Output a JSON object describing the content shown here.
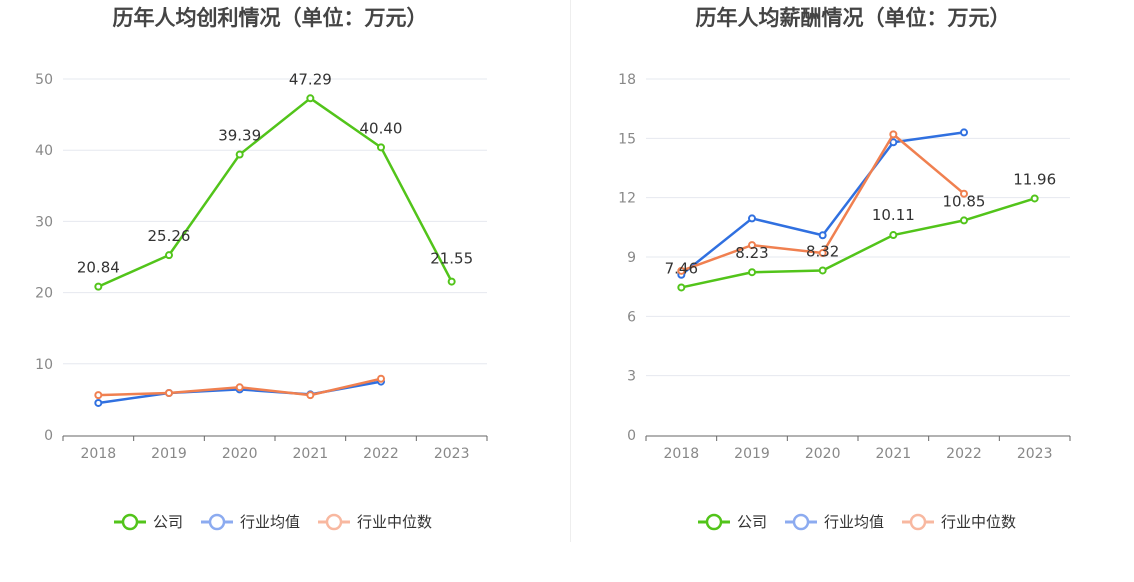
{
  "colors": {
    "company": "#52c41a",
    "industry_avg": "#3070e0",
    "industry_median": "#f08050",
    "legend_avg": "#8cabf0",
    "legend_median": "#f8b8a0"
  },
  "chart_data": [
    {
      "type": "line",
      "title": "历年人均创利情况（单位：万元）",
      "categories": [
        "2018",
        "2019",
        "2020",
        "2021",
        "2022",
        "2023"
      ],
      "ylim": [
        0,
        50
      ],
      "yticks": [
        "0",
        "10",
        "20",
        "30",
        "40",
        "50"
      ],
      "grid": true,
      "legend_position": "bottom",
      "series": [
        {
          "name": "公司",
          "key": "company",
          "values": [
            20.84,
            25.26,
            39.39,
            47.29,
            40.4,
            21.55
          ],
          "labels": [
            "20.84",
            "25.26",
            "39.39",
            "47.29",
            "40.40",
            "21.55"
          ]
        },
        {
          "name": "行业均值",
          "key": "industry_avg",
          "values": [
            4.5,
            5.9,
            6.4,
            5.7,
            7.5,
            null
          ]
        },
        {
          "name": "行业中位数",
          "key": "industry_median",
          "values": [
            5.6,
            5.9,
            6.7,
            5.6,
            7.9,
            null
          ]
        }
      ]
    },
    {
      "type": "line",
      "title": "历年人均薪酬情况（单位：万元）",
      "categories": [
        "2018",
        "2019",
        "2020",
        "2021",
        "2022",
        "2023"
      ],
      "ylim": [
        0,
        18
      ],
      "yticks": [
        "0",
        "3",
        "6",
        "9",
        "12",
        "15",
        "18"
      ],
      "grid": true,
      "legend_position": "bottom",
      "series": [
        {
          "name": "公司",
          "key": "company",
          "values": [
            7.46,
            8.23,
            8.32,
            10.11,
            10.85,
            11.96
          ],
          "labels": [
            "7.46",
            "8.23",
            "8.32",
            "10.11",
            "10.85",
            "11.96"
          ]
        },
        {
          "name": "行业均值",
          "key": "industry_avg",
          "values": [
            8.1,
            10.95,
            10.1,
            14.8,
            15.3,
            null
          ]
        },
        {
          "name": "行业中位数",
          "key": "industry_median",
          "values": [
            8.3,
            9.6,
            9.2,
            15.2,
            12.2,
            null
          ]
        }
      ]
    }
  ]
}
